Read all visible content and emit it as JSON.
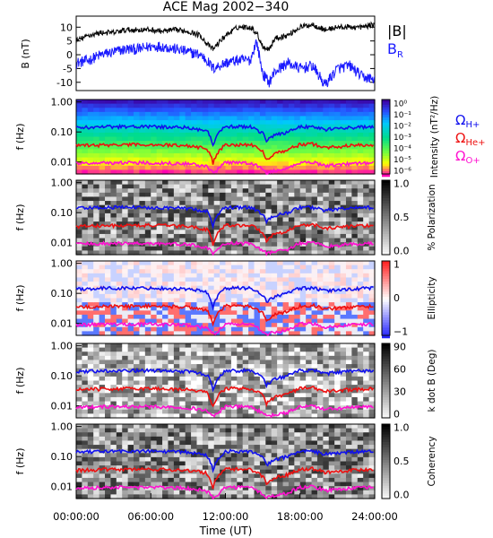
{
  "figure": {
    "title": "ACE Mag 2002−340",
    "xlabel": "Time (UT)",
    "xticks": [
      "00:00:00",
      "06:00:00",
      "12:00:00",
      "18:00:00",
      "24:00:00"
    ]
  },
  "colors": {
    "magnitude": "#000000",
    "br": "#1a1aff",
    "h_plus": "#1010ee",
    "he_plus": "#ee1010",
    "o_plus": "#ff10d0"
  },
  "chart_data": [
    {
      "type": "line",
      "ylabel": "B (nT)",
      "xlim": [
        0,
        24
      ],
      "ylim": [
        -13,
        14
      ],
      "yticks": [
        10,
        5,
        0,
        -5,
        -10
      ],
      "series": [
        {
          "name": "|B|",
          "x": [
            0,
            1,
            2,
            3,
            4,
            5,
            6,
            7,
            8,
            9,
            10,
            10.5,
            11,
            12,
            13,
            14,
            14.5,
            15,
            15.5,
            16,
            17,
            18,
            19,
            20,
            21,
            22,
            23,
            24
          ],
          "values": [
            5,
            7,
            8,
            8,
            9,
            9,
            9,
            8.5,
            9,
            8.5,
            7,
            4,
            2,
            7,
            10,
            10,
            8,
            3,
            2,
            6,
            7,
            10,
            11,
            9,
            10,
            10,
            10,
            11
          ]
        },
        {
          "name": "B_R",
          "x": [
            0,
            1,
            2,
            3,
            4,
            5,
            6,
            7,
            8,
            9,
            10,
            10.5,
            11,
            12,
            13,
            14,
            14.5,
            15,
            15.5,
            16,
            17,
            18,
            19,
            20,
            21,
            22,
            23,
            24
          ],
          "values": [
            -3,
            -2,
            0,
            1,
            2,
            2,
            3,
            3,
            2,
            1,
            0,
            -2,
            -5,
            -3,
            -2,
            -2,
            5,
            -7,
            -10,
            -6,
            -3,
            -5,
            -4,
            -11,
            -5,
            -4,
            -8,
            -9
          ]
        }
      ]
    },
    {
      "type": "heatmap",
      "ylabel": "f (Hz)",
      "ylim": [
        0.004,
        1.2
      ],
      "yscale": "log",
      "yticks": [
        "1.00",
        "0.10",
        "0.01"
      ],
      "colorbar": {
        "label": "Intensity (nT²/Hz)",
        "ticks": [
          "10⁰",
          "10⁻¹",
          "10⁻²",
          "10⁻³",
          "10⁻⁴",
          "10⁻⁵",
          "10⁻⁶"
        ]
      },
      "series": [
        {
          "name": "ΩH+",
          "time": [
            0,
            3,
            6,
            9,
            10.5,
            11,
            11.3,
            12,
            14,
            15,
            15.3,
            16,
            17,
            18,
            19,
            20,
            22,
            24
          ],
          "values": [
            0.14,
            0.15,
            0.15,
            0.14,
            0.11,
            0.035,
            0.07,
            0.15,
            0.15,
            0.09,
            0.05,
            0.08,
            0.1,
            0.15,
            0.15,
            0.12,
            0.14,
            0.15
          ]
        },
        {
          "name": "ΩHe+",
          "time": [
            0,
            3,
            6,
            9,
            10.5,
            11,
            11.3,
            12,
            14,
            15,
            15.3,
            16,
            17,
            18,
            19,
            20,
            22,
            24
          ],
          "values": [
            0.035,
            0.037,
            0.038,
            0.035,
            0.028,
            0.009,
            0.018,
            0.038,
            0.038,
            0.022,
            0.012,
            0.02,
            0.025,
            0.038,
            0.04,
            0.03,
            0.035,
            0.038
          ]
        },
        {
          "name": "ΩO+",
          "time": [
            0,
            3,
            6,
            9,
            10.5,
            11,
            11.3,
            12,
            14,
            15,
            15.3,
            16,
            17,
            18,
            19,
            20,
            22,
            24
          ],
          "values": [
            0.009,
            0.0095,
            0.0095,
            0.0088,
            0.007,
            0.0045,
            0.005,
            0.0095,
            0.0095,
            0.0055,
            0.0045,
            0.005,
            0.006,
            0.0095,
            0.01,
            0.0075,
            0.0088,
            0.0095
          ]
        }
      ]
    },
    {
      "type": "heatmap",
      "ylabel": "f (Hz)",
      "yticks": [
        "1.00",
        "0.10",
        "0.01"
      ],
      "colorbar": {
        "label": "% Polarization",
        "ticks": [
          "1.0",
          "0.5",
          "0.0"
        ]
      }
    },
    {
      "type": "heatmap",
      "ylabel": "f (Hz)",
      "yticks": [
        "1.00",
        "0.10",
        "0.01"
      ],
      "colorbar": {
        "label": "Ellipticity",
        "ticks": [
          "1",
          "0",
          "−1"
        ]
      }
    },
    {
      "type": "heatmap",
      "ylabel": "f (Hz)",
      "yticks": [
        "1.00",
        "0.10",
        "0.01"
      ],
      "colorbar": {
        "label": "k dot B (Deg)",
        "ticks": [
          "90",
          "60",
          "30",
          "0"
        ]
      }
    },
    {
      "type": "heatmap",
      "ylabel": "f (Hz)",
      "yticks": [
        "1.00",
        "0.10",
        "0.01"
      ],
      "colorbar": {
        "label": "Coherency",
        "ticks": [
          "1.0",
          "0.5",
          "0.0"
        ]
      }
    }
  ],
  "legend": {
    "b_mag": "|B|",
    "b_r_main": "B",
    "b_r_sub": "R",
    "omega": "Ω",
    "h_sub": "H+",
    "he_sub": "He+",
    "o_sub": "O+"
  }
}
